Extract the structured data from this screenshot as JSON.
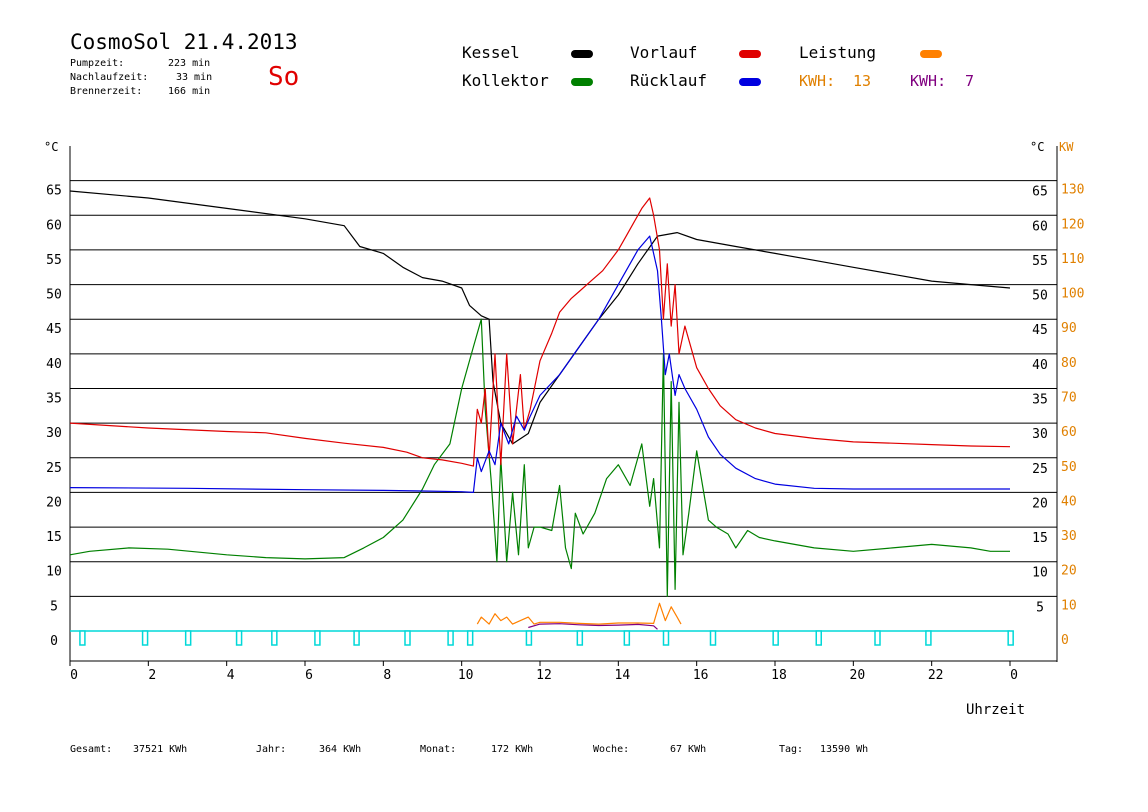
{
  "header": {
    "title": "CosmoSol 21.4.2013",
    "pumpzeit_label": "Pumpzeit:",
    "pumpzeit_value": "223 min",
    "nachlaufzeit_label": "Nachlaufzeit:",
    "nachlaufzeit_value": "33 min",
    "brennerzeit_label": "Brennerzeit:",
    "brennerzeit_value": "166 min",
    "weekday": "So"
  },
  "legend": {
    "kessel": "Kessel",
    "kollektor": "Kollektor",
    "vorlauf": "Vorlauf",
    "ruecklauf": "Rücklauf",
    "leistung": "Leistung",
    "kwh_label_1": "KWH:",
    "kwh_value_1": "13",
    "kwh_label_2": "KWH:",
    "kwh_value_2": "7"
  },
  "colors": {
    "kessel": "#000000",
    "kollektor": "#008000",
    "vorlauf": "#e00000",
    "ruecklauf": "#0000e0",
    "leistung": "#ff8000",
    "kwh2": "#800080",
    "pump": "#00d8d8",
    "kw_axis": "#e08000"
  },
  "axes": {
    "left_unit": "°C",
    "right_unit": "°C",
    "right_kw_unit": "KW",
    "xlabel": "Uhrzeit"
  },
  "footer": {
    "gesamt_label": "Gesamt:",
    "gesamt_value": "37521 KWh",
    "jahr_label": "Jahr:",
    "jahr_value": "364 KWh",
    "monat_label": "Monat:",
    "monat_value": "172 KWh",
    "woche_label": "Woche:",
    "woche_value": "67 KWh",
    "tag_label": "Tag:",
    "tag_value": "13590 Wh"
  },
  "chart_data": {
    "type": "line",
    "xlabel": "Uhrzeit",
    "ylabel": "°C",
    "xlim": [
      0,
      24
    ],
    "ylim": [
      0,
      70
    ],
    "y2lim": [
      0,
      140
    ],
    "x_ticks": [
      "0",
      "2",
      "4",
      "6",
      "8",
      "10",
      "12",
      "14",
      "16",
      "18",
      "20",
      "22",
      "0"
    ],
    "y_ticks_left": [
      "0",
      "5",
      "10",
      "15",
      "20",
      "25",
      "30",
      "35",
      "40",
      "45",
      "50",
      "55",
      "60",
      "65"
    ],
    "y_ticks_right": [
      "5",
      "10",
      "15",
      "20",
      "25",
      "30",
      "35",
      "40",
      "45",
      "50",
      "55",
      "60",
      "65"
    ],
    "y2_ticks": [
      "0",
      "10",
      "20",
      "30",
      "40",
      "50",
      "60",
      "70",
      "80",
      "90",
      "100",
      "110",
      "120",
      "130"
    ],
    "grid": "horizontal",
    "series": [
      {
        "name": "Kessel",
        "color": "#000000",
        "points": [
          [
            0,
            63.5
          ],
          [
            2,
            62.5
          ],
          [
            4,
            61
          ],
          [
            6,
            59.5
          ],
          [
            7,
            58.5
          ],
          [
            7.2,
            57
          ],
          [
            7.4,
            55.5
          ],
          [
            8,
            54.5
          ],
          [
            8.5,
            52.5
          ],
          [
            9,
            51
          ],
          [
            9.5,
            50.5
          ],
          [
            10,
            49.5
          ],
          [
            10.2,
            47
          ],
          [
            10.5,
            45.5
          ],
          [
            10.7,
            45
          ],
          [
            10.8,
            36
          ],
          [
            11,
            30
          ],
          [
            11.3,
            27
          ],
          [
            11.7,
            28.5
          ],
          [
            12,
            33
          ],
          [
            12.5,
            37
          ],
          [
            13,
            41
          ],
          [
            13.5,
            45
          ],
          [
            14,
            48.5
          ],
          [
            14.5,
            53
          ],
          [
            15,
            57
          ],
          [
            15.5,
            57.5
          ],
          [
            16,
            56.5
          ],
          [
            17,
            55.5
          ],
          [
            18,
            54.5
          ],
          [
            19,
            53.5
          ],
          [
            20,
            52.5
          ],
          [
            21,
            51.5
          ],
          [
            22,
            50.5
          ],
          [
            23,
            50
          ],
          [
            24,
            49.5
          ]
        ]
      },
      {
        "name": "Kollektor",
        "color": "#008000",
        "points": [
          [
            0,
            11
          ],
          [
            0.5,
            11.5
          ],
          [
            1.5,
            12
          ],
          [
            2.5,
            11.8
          ],
          [
            4,
            11
          ],
          [
            5,
            10.6
          ],
          [
            6,
            10.4
          ],
          [
            7,
            10.6
          ],
          [
            7.5,
            12
          ],
          [
            8,
            13.5
          ],
          [
            8.5,
            16
          ],
          [
            9,
            20.5
          ],
          [
            9.3,
            24
          ],
          [
            9.7,
            27
          ],
          [
            10,
            35
          ],
          [
            10.3,
            41
          ],
          [
            10.5,
            45
          ],
          [
            10.6,
            32
          ],
          [
            10.75,
            22
          ],
          [
            10.9,
            10
          ],
          [
            11,
            25
          ],
          [
            11.15,
            10
          ],
          [
            11.3,
            20
          ],
          [
            11.45,
            11
          ],
          [
            11.6,
            24
          ],
          [
            11.7,
            12
          ],
          [
            11.85,
            15
          ],
          [
            12,
            15
          ],
          [
            12.3,
            14.5
          ],
          [
            12.5,
            21
          ],
          [
            12.65,
            12
          ],
          [
            12.8,
            9
          ],
          [
            12.9,
            17
          ],
          [
            13.1,
            14
          ],
          [
            13.4,
            17
          ],
          [
            13.7,
            22
          ],
          [
            14,
            24
          ],
          [
            14.3,
            21
          ],
          [
            14.6,
            27
          ],
          [
            14.8,
            18
          ],
          [
            14.9,
            22
          ],
          [
            15.05,
            12
          ],
          [
            15.15,
            40
          ],
          [
            15.25,
            5
          ],
          [
            15.35,
            36
          ],
          [
            15.45,
            6
          ],
          [
            15.55,
            33
          ],
          [
            15.65,
            11
          ],
          [
            15.8,
            17
          ],
          [
            16,
            26
          ],
          [
            16.3,
            16
          ],
          [
            16.5,
            15
          ],
          [
            16.8,
            14
          ],
          [
            17,
            12
          ],
          [
            17.3,
            14.5
          ],
          [
            17.6,
            13.5
          ],
          [
            18,
            13
          ],
          [
            19,
            12
          ],
          [
            20,
            11.5
          ],
          [
            21,
            12
          ],
          [
            22,
            12.5
          ],
          [
            23,
            12
          ],
          [
            23.5,
            11.5
          ],
          [
            24,
            11.5
          ]
        ]
      },
      {
        "name": "Vorlauf",
        "color": "#e00000",
        "points": [
          [
            0,
            30
          ],
          [
            2,
            29.3
          ],
          [
            4,
            28.8
          ],
          [
            5,
            28.6
          ],
          [
            6,
            27.8
          ],
          [
            7,
            27.1
          ],
          [
            8,
            26.5
          ],
          [
            8.6,
            25.8
          ],
          [
            9,
            25
          ],
          [
            9.5,
            24.7
          ],
          [
            10,
            24.2
          ],
          [
            10.3,
            23.8
          ],
          [
            10.4,
            32
          ],
          [
            10.5,
            30
          ],
          [
            10.6,
            35
          ],
          [
            10.7,
            25
          ],
          [
            10.85,
            40
          ],
          [
            11,
            24
          ],
          [
            11.15,
            40
          ],
          [
            11.3,
            27
          ],
          [
            11.5,
            37
          ],
          [
            11.6,
            29
          ],
          [
            11.75,
            32
          ],
          [
            12,
            39
          ],
          [
            12.3,
            43
          ],
          [
            12.5,
            46
          ],
          [
            12.8,
            48
          ],
          [
            13,
            49
          ],
          [
            13.3,
            50.5
          ],
          [
            13.6,
            52
          ],
          [
            14,
            55
          ],
          [
            14.2,
            57
          ],
          [
            14.4,
            59
          ],
          [
            14.6,
            61
          ],
          [
            14.8,
            62.5
          ],
          [
            14.9,
            60
          ],
          [
            15.05,
            55
          ],
          [
            15.15,
            45
          ],
          [
            15.25,
            53
          ],
          [
            15.35,
            44
          ],
          [
            15.45,
            50
          ],
          [
            15.55,
            40
          ],
          [
            15.7,
            44
          ],
          [
            16,
            38
          ],
          [
            16.3,
            35
          ],
          [
            16.6,
            32.5
          ],
          [
            17,
            30.5
          ],
          [
            17.5,
            29.3
          ],
          [
            18,
            28.5
          ],
          [
            19,
            27.8
          ],
          [
            20,
            27.3
          ],
          [
            21,
            27.1
          ],
          [
            22,
            26.9
          ],
          [
            23,
            26.7
          ],
          [
            24,
            26.6
          ]
        ]
      },
      {
        "name": "Rücklauf",
        "color": "#0000e0",
        "points": [
          [
            0,
            20.7
          ],
          [
            3,
            20.6
          ],
          [
            6,
            20.4
          ],
          [
            8,
            20.3
          ],
          [
            9,
            20.2
          ],
          [
            10,
            20.1
          ],
          [
            10.3,
            20
          ],
          [
            10.4,
            25
          ],
          [
            10.5,
            23
          ],
          [
            10.7,
            26
          ],
          [
            10.85,
            24
          ],
          [
            11,
            30
          ],
          [
            11.2,
            27
          ],
          [
            11.4,
            31
          ],
          [
            11.6,
            29
          ],
          [
            11.75,
            31
          ],
          [
            12,
            34
          ],
          [
            12.5,
            37
          ],
          [
            13,
            41
          ],
          [
            13.5,
            45
          ],
          [
            14,
            50
          ],
          [
            14.5,
            55
          ],
          [
            14.8,
            57
          ],
          [
            15,
            52
          ],
          [
            15.1,
            45
          ],
          [
            15.2,
            37
          ],
          [
            15.3,
            40
          ],
          [
            15.45,
            34
          ],
          [
            15.55,
            37
          ],
          [
            15.7,
            35
          ],
          [
            16,
            32
          ],
          [
            16.3,
            28
          ],
          [
            16.6,
            25.5
          ],
          [
            17,
            23.5
          ],
          [
            17.5,
            22
          ],
          [
            18,
            21.2
          ],
          [
            19,
            20.6
          ],
          [
            20,
            20.5
          ],
          [
            22,
            20.5
          ],
          [
            24,
            20.5
          ]
        ]
      },
      {
        "name": "Leistung",
        "color": "#ff8000",
        "axis": "KW",
        "points": [
          [
            10.4,
            2
          ],
          [
            10.5,
            4
          ],
          [
            10.7,
            2
          ],
          [
            10.85,
            5
          ],
          [
            11,
            3
          ],
          [
            11.15,
            4
          ],
          [
            11.3,
            2
          ],
          [
            11.5,
            3
          ],
          [
            11.7,
            4
          ],
          [
            11.85,
            2
          ],
          [
            12,
            2.5
          ],
          [
            12.5,
            2.5
          ],
          [
            13,
            2.2
          ],
          [
            13.5,
            2
          ],
          [
            14,
            2.3
          ],
          [
            14.5,
            2.3
          ],
          [
            14.9,
            2.2
          ],
          [
            15.05,
            8
          ],
          [
            15.2,
            3
          ],
          [
            15.35,
            7
          ],
          [
            15.5,
            4
          ],
          [
            15.6,
            2
          ]
        ]
      },
      {
        "name": "KWH 2",
        "color": "#800080",
        "axis": "KW",
        "points": [
          [
            11.7,
            1
          ],
          [
            12,
            2
          ],
          [
            12.5,
            2.1
          ],
          [
            13,
            1.8
          ],
          [
            13.5,
            1.6
          ],
          [
            14,
            1.7
          ],
          [
            14.5,
            1.9
          ],
          [
            14.9,
            1.5
          ],
          [
            15,
            0.5
          ]
        ]
      }
    ],
    "pump_markers": [
      0.1,
      1.7,
      2.8,
      4.1,
      5.0,
      6.1,
      7.1,
      8.4,
      9.5,
      10.0,
      11.5,
      12.8,
      14.0,
      15.0,
      16.2,
      17.8,
      18.9,
      20.4,
      21.7,
      23.8
    ]
  }
}
